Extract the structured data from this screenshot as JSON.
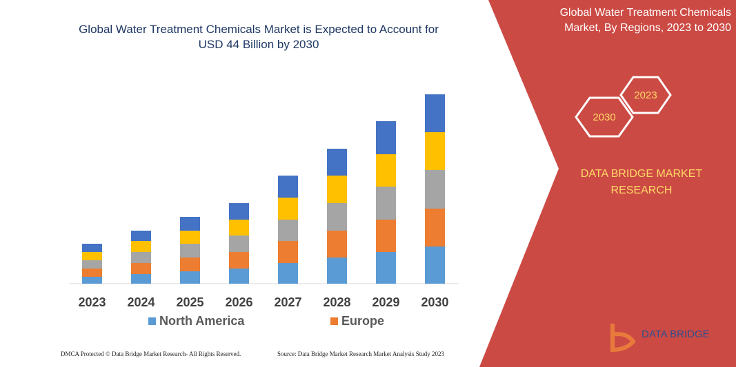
{
  "chart_data": {
    "type": "bar",
    "stacked": true,
    "title": "Global Water Treatment Chemicals Market is Expected to Account for USD 44 Billion by 2030",
    "categories": [
      "2023",
      "2024",
      "2025",
      "2026",
      "2027",
      "2028",
      "2029",
      "2030"
    ],
    "series": [
      {
        "name": "North America",
        "color": "#5b9bd5",
        "values": [
          10,
          14,
          18,
          22,
          30,
          38,
          46,
          54
        ]
      },
      {
        "name": "Europe",
        "color": "#ed7d31",
        "values": [
          12,
          16,
          20,
          24,
          32,
          39,
          47,
          55
        ]
      },
      {
        "color": "#a5a5a5",
        "values": [
          12,
          16,
          20,
          24,
          31,
          40,
          48,
          56
        ]
      },
      {
        "color": "#ffc000",
        "values": [
          12,
          16,
          19,
          23,
          32,
          40,
          47,
          55
        ]
      },
      {
        "color": "#4472c4",
        "values": [
          12,
          15,
          20,
          24,
          32,
          39,
          48,
          55
        ]
      }
    ]
  },
  "panel": {
    "title": "Global Water Treatment Chemicals Market, By Regions, 2023 to 2030",
    "hex_a": "2023",
    "hex_b": "2030",
    "brand": "DATA BRIDGE MARKET RESEARCH",
    "logo": "DATA BRIDGE"
  },
  "footer": {
    "left": "DMCA Protected © Data Bridge Market Research- All Rights Reserved.",
    "right": "Source: Data Bridge Market Research Market Analysis Study 2023"
  }
}
